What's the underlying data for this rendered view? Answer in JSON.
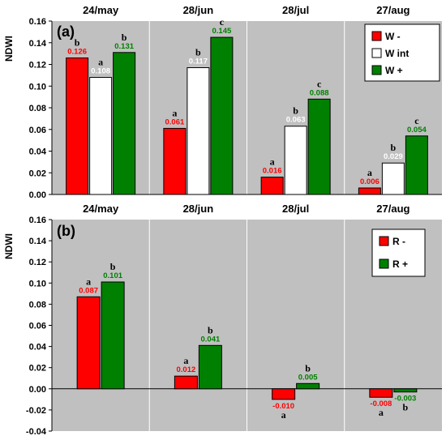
{
  "chart_data": [
    {
      "type": "bar",
      "panel_label": "(a)",
      "ylabel": "NDWI",
      "ylim": [
        0,
        0.16
      ],
      "yticks": [
        "0.00",
        "0.02",
        "0.04",
        "0.06",
        "0.08",
        "0.10",
        "0.12",
        "0.14",
        "0.16"
      ],
      "categories": [
        "24/may",
        "28/jun",
        "28/jul",
        "27/aug"
      ],
      "legend_position": "top-right",
      "grid": false,
      "series": [
        {
          "name": "W -",
          "color": "#ff0000",
          "values": [
            0.126,
            0.061,
            0.016,
            0.006
          ],
          "labels": [
            "0.126",
            "0.061",
            "0.016",
            "0.006"
          ],
          "letters": [
            "b",
            "a",
            "a",
            "a"
          ]
        },
        {
          "name": "W int",
          "color": "#ffffff",
          "values": [
            0.108,
            0.117,
            0.063,
            0.029
          ],
          "labels": [
            "0.108",
            "0.117",
            "0.063",
            "0.029"
          ],
          "letters": [
            "a",
            "b",
            "b",
            "b"
          ]
        },
        {
          "name": "W +",
          "color": "#008000",
          "values": [
            0.131,
            0.145,
            0.088,
            0.054
          ],
          "labels": [
            "0.131",
            "0.145",
            "0.088",
            "0.054"
          ],
          "letters": [
            "b",
            "c",
            "c",
            "c"
          ]
        }
      ]
    },
    {
      "type": "bar",
      "panel_label": "(b)",
      "ylabel": "NDWI",
      "ylim": [
        -0.04,
        0.16
      ],
      "yticks": [
        "-0.04",
        "-0.02",
        "0.00",
        "0.02",
        "0.04",
        "0.06",
        "0.08",
        "0.10",
        "0.12",
        "0.14",
        "0.16"
      ],
      "categories": [
        "24/may",
        "28/jun",
        "28/jul",
        "27/aug"
      ],
      "legend_position": "top-right",
      "grid": false,
      "series": [
        {
          "name": "R -",
          "color": "#ff0000",
          "values": [
            0.087,
            0.012,
            -0.01,
            -0.008
          ],
          "labels": [
            "0.087",
            "0.012",
            "-0.010",
            "-0.008"
          ],
          "letters": [
            "a",
            "a",
            "a",
            "a"
          ]
        },
        {
          "name": "R +",
          "color": "#008000",
          "values": [
            0.101,
            0.041,
            0.005,
            -0.003
          ],
          "labels": [
            "0.101",
            "0.041",
            "0.005",
            "-0.003"
          ],
          "letters": [
            "b",
            "b",
            "b",
            "b"
          ]
        }
      ]
    }
  ],
  "colors": {
    "plot_bg": "#c0c0c0",
    "divider": "#ffffff",
    "white_label": "#ffffff"
  }
}
